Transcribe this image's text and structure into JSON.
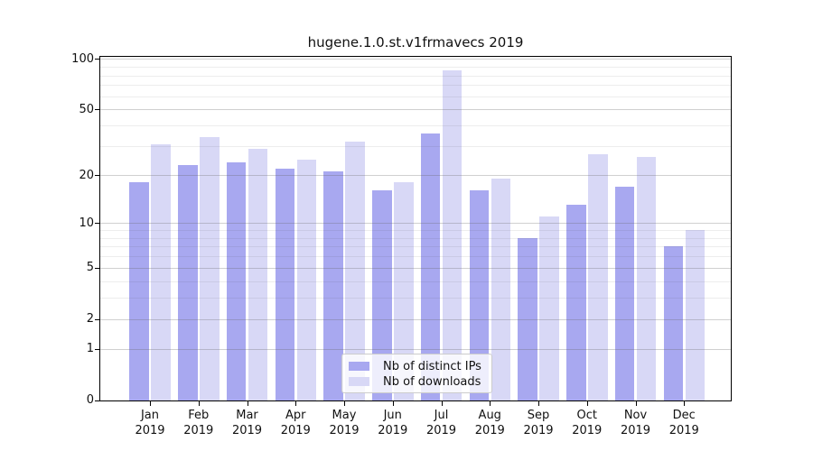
{
  "chart_data": {
    "type": "bar",
    "title": "hugene.1.0.st.v1frmavecs 2019",
    "year": "2019",
    "categories": [
      "Jan",
      "Feb",
      "Mar",
      "Apr",
      "May",
      "Jun",
      "Jul",
      "Aug",
      "Sep",
      "Oct",
      "Nov",
      "Dec"
    ],
    "series": [
      {
        "name": "Nb of distinct IPs",
        "color": "#a8a8f0",
        "values": [
          18,
          23,
          24,
          22,
          21,
          16,
          36,
          16,
          8,
          13,
          17,
          7
        ]
      },
      {
        "name": "Nb of downloads",
        "color": "#d8d8f6",
        "values": [
          31,
          34,
          29,
          25,
          32,
          18,
          86,
          19,
          11,
          27,
          26,
          9
        ]
      }
    ],
    "xlabel": "",
    "ylabel": "",
    "yscale": "log10(value+1)",
    "ylim": [
      0,
      100
    ],
    "yticks": [
      0,
      1,
      2,
      5,
      10,
      20,
      50,
      100
    ],
    "yticks_minor": [
      3,
      4,
      6,
      7,
      8,
      9,
      30,
      40,
      60,
      70,
      80,
      90
    ],
    "grid": "on",
    "legend_position": "lower center"
  }
}
